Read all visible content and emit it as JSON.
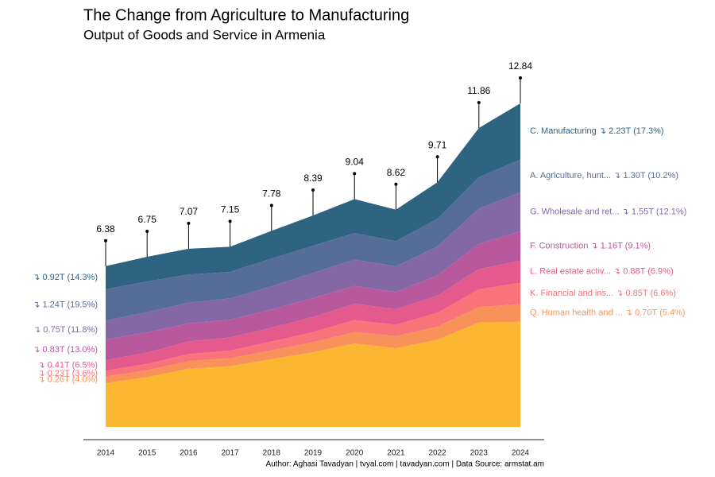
{
  "chart_data": {
    "type": "stacked_area",
    "title": "The Change from Agriculture to Manufacturing",
    "subtitle": "Output of Goods and Service in Armenia",
    "footer": "Author: Aghasi Tavadyan   |   tvyal.com   |   tavadyan.com    |   Data Source: armstat.am",
    "categories": [
      "2014",
      "2015",
      "2016",
      "2017",
      "2018",
      "2019",
      "2020",
      "2021",
      "2022",
      "2023",
      "2024"
    ],
    "totals": [
      6.38,
      6.75,
      7.07,
      7.15,
      7.78,
      8.39,
      9.04,
      8.62,
      9.71,
      11.86,
      12.84
    ],
    "series": [
      {
        "color": "#fbb732",
        "values": [
          1.74,
          1.97,
          2.31,
          2.41,
          2.69,
          2.96,
          3.31,
          3.12,
          3.46,
          4.14,
          4.17
        ]
      },
      {
        "color": "#f9925a",
        "start_label": "↴ 0.26T (4.0%)",
        "end_label": "Q. Human health and ... ↴ 0.70T (5.4%)",
        "values": [
          0.26,
          0.28,
          0.3,
          0.32,
          0.35,
          0.4,
          0.45,
          0.48,
          0.52,
          0.62,
          0.7
        ]
      },
      {
        "color": "#f8737a",
        "start_label": "↴ 0.23T (3.6%)",
        "end_label": "K. Financial and ins... ↴ 0.85T (6.6%)",
        "values": [
          0.23,
          0.25,
          0.28,
          0.3,
          0.35,
          0.4,
          0.48,
          0.45,
          0.55,
          0.7,
          0.85
        ]
      },
      {
        "color": "#e55a8c",
        "start_label": "↴ 0.41T (6.5%)",
        "end_label": "L. Real estate activ... ↴ 0.88T (6.9%)",
        "values": [
          0.41,
          0.45,
          0.5,
          0.52,
          0.55,
          0.6,
          0.65,
          0.62,
          0.68,
          0.8,
          0.88
        ]
      },
      {
        "color": "#b8589d",
        "start_label": "↴ 0.83T (13.0%)",
        "end_label": "F. Construction ↴ 1.16T (9.1%)",
        "values": [
          0.83,
          0.8,
          0.72,
          0.7,
          0.72,
          0.75,
          0.7,
          0.68,
          0.8,
          1.0,
          1.16
        ]
      },
      {
        "color": "#8468a6",
        "start_label": "↴ 0.75T (11.8%)",
        "end_label": "G. Wholesale and ret... ↴ 1.55T (12.1%)",
        "values": [
          0.75,
          0.8,
          0.82,
          0.85,
          0.92,
          1.0,
          1.05,
          1.02,
          1.15,
          1.4,
          1.55
        ]
      },
      {
        "color": "#566d98",
        "start_label": "↴ 1.24T (19.5%)",
        "end_label": "A. Agriculture, hunt... ↴ 1.30T (10.2%)",
        "values": [
          1.24,
          1.22,
          1.12,
          1.05,
          1.1,
          1.08,
          1.05,
          1.0,
          1.1,
          1.25,
          1.3
        ]
      },
      {
        "color": "#2e6480",
        "start_label": "↴ 0.92T (14.3%)",
        "end_label": "C. Manufacturing ↴ 2.23T (17.3%)",
        "values": [
          0.92,
          0.98,
          1.02,
          1.0,
          1.1,
          1.2,
          1.35,
          1.25,
          1.45,
          1.95,
          2.23
        ]
      }
    ]
  }
}
